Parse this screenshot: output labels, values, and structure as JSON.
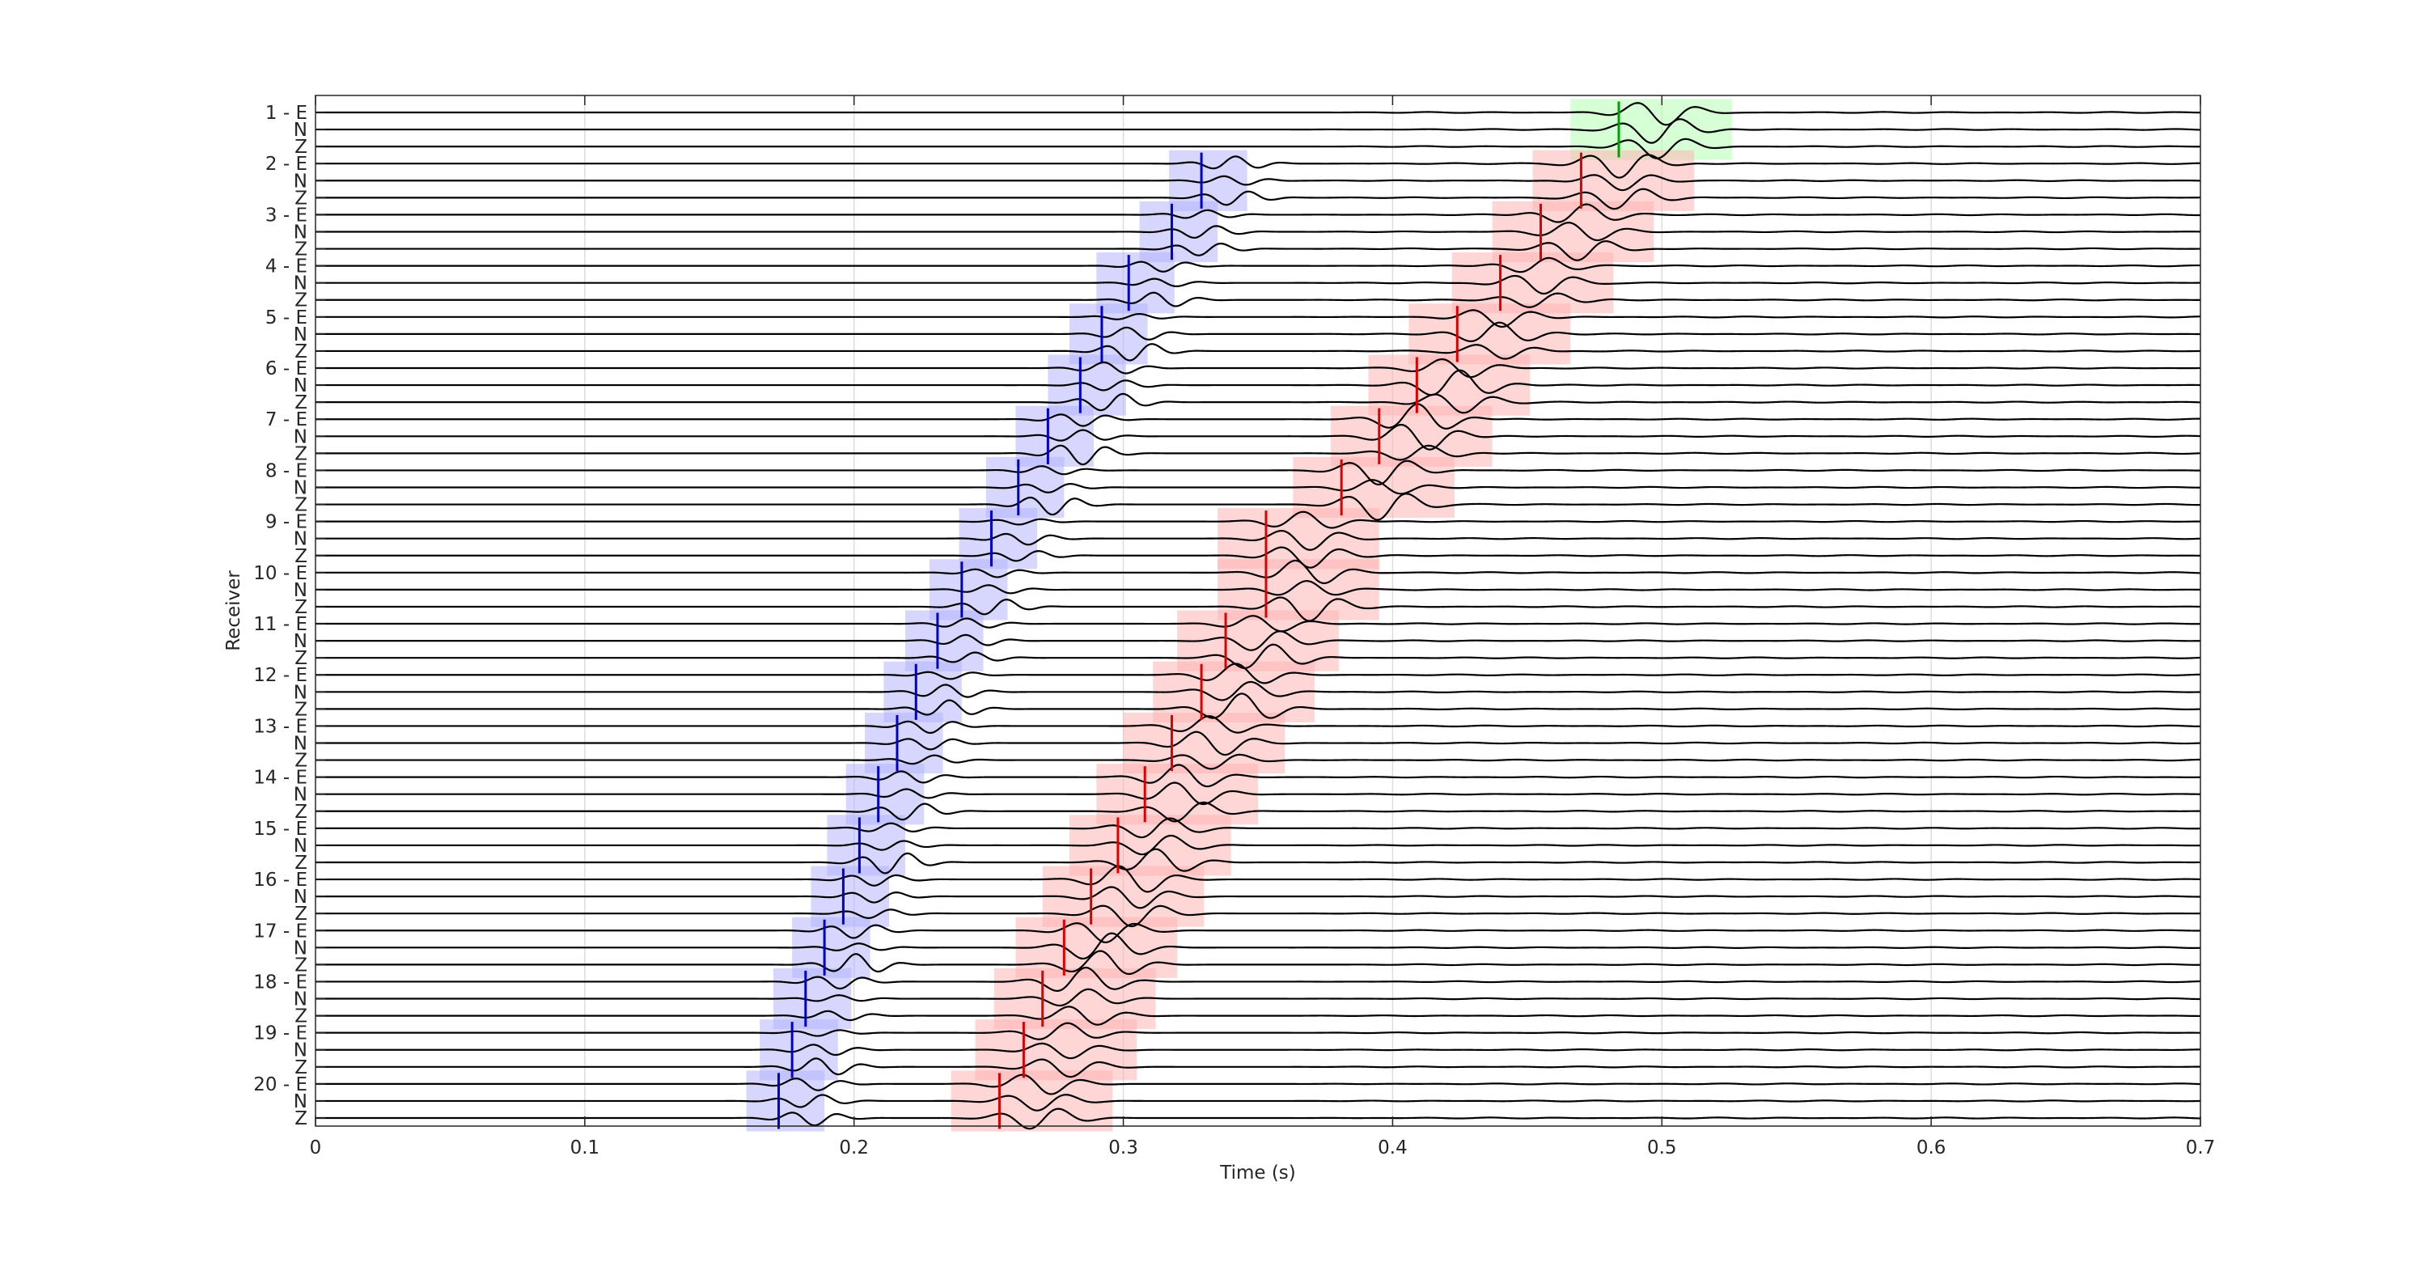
{
  "chart_data": {
    "type": "line",
    "title": "",
    "xlabel": "Time (s)",
    "ylabel": "Receiver",
    "xlim": [
      0,
      0.7
    ],
    "xticks": [
      0,
      0.1,
      0.2,
      0.3,
      0.4,
      0.5,
      0.6,
      0.7
    ],
    "xtick_labels": [
      "0",
      "0.1",
      "0.2",
      "0.3",
      "0.4",
      "0.5",
      "0.6",
      "0.7"
    ],
    "grid": true,
    "receivers": [
      "1",
      "2",
      "3",
      "4",
      "5",
      "6",
      "7",
      "8",
      "9",
      "10",
      "11",
      "12",
      "13",
      "14",
      "15",
      "16",
      "17",
      "18",
      "19",
      "20"
    ],
    "components": [
      "E",
      "N",
      "Z"
    ],
    "p_picks": [
      null,
      0.329,
      0.318,
      0.302,
      0.292,
      0.284,
      0.272,
      0.261,
      0.251,
      0.24,
      0.231,
      0.223,
      0.216,
      0.209,
      0.202,
      0.196,
      0.189,
      0.182,
      0.177,
      0.172
    ],
    "s_picks": [
      0.484,
      0.47,
      0.455,
      0.44,
      0.424,
      0.409,
      0.395,
      0.381,
      0.353,
      0.353,
      0.338,
      0.329,
      0.318,
      0.308,
      0.298,
      0.288,
      0.278,
      0.27,
      0.263,
      0.254
    ],
    "p_window": [
      -0.012,
      0.017
    ],
    "s_window": [
      -0.018,
      0.042
    ],
    "colors": {
      "p_pick": "#0000c8",
      "p_window": "#b4b4ff",
      "s_pick": "#dc0000",
      "s_window": "#ffb4b4",
      "s_pick_first": "#00a000",
      "s_window_first": "#b4ffb4",
      "trace": "#000000",
      "grid": "#dcdcdc",
      "axes": "#262626"
    }
  }
}
